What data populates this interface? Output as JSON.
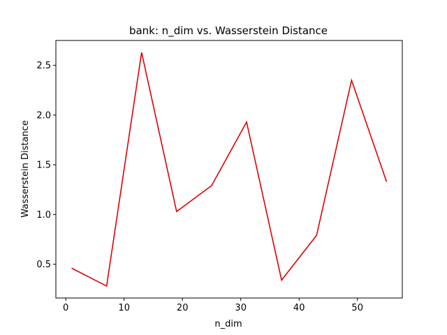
{
  "chart_data": {
    "type": "line",
    "title": "bank: n_dim vs. Wasserstein Distance",
    "xlabel": "n_dim",
    "ylabel": "Wasserstein Distance",
    "xlim": [
      -1.7,
      57.7
    ],
    "ylim": [
      0.16,
      2.75
    ],
    "xticks": [
      0,
      10,
      20,
      30,
      40,
      50
    ],
    "yticks": [
      0.5,
      1.0,
      1.5,
      2.0,
      2.5
    ],
    "xtick_labels": [
      "0",
      "10",
      "20",
      "30",
      "40",
      "50"
    ],
    "ytick_labels": [
      "0.5",
      "1.0",
      "1.5",
      "2.0",
      "2.5"
    ],
    "grid": false,
    "series": [
      {
        "color": "#e00000",
        "x": [
          1,
          7,
          13,
          19,
          25,
          31,
          37,
          43,
          49,
          55
        ],
        "y": [
          0.46,
          0.28,
          2.63,
          1.03,
          1.29,
          1.93,
          0.34,
          0.79,
          2.35,
          1.33
        ]
      }
    ]
  }
}
